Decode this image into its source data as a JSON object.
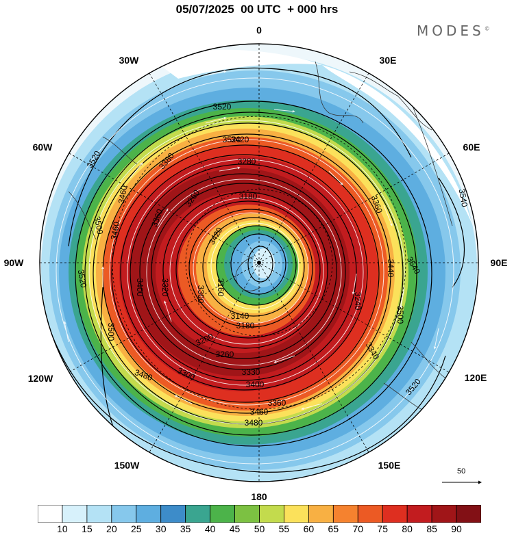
{
  "title": "05/07/2025  00 UTC  + 000 hrs",
  "brand": "MODES",
  "brand_mark": "©",
  "longitudes": [
    {
      "label": "0",
      "name": "lon-label-0"
    },
    {
      "label": "30E",
      "name": "lon-label-30e"
    },
    {
      "label": "60E",
      "name": "lon-label-60e"
    },
    {
      "label": "90E",
      "name": "lon-label-90e"
    },
    {
      "label": "120E",
      "name": "lon-label-120e"
    },
    {
      "label": "150E",
      "name": "lon-label-150e"
    },
    {
      "label": "180",
      "name": "lon-label-180"
    },
    {
      "label": "150W",
      "name": "lon-label-150w"
    },
    {
      "label": "120W",
      "name": "lon-label-120w"
    },
    {
      "label": "90W",
      "name": "lon-label-90w"
    },
    {
      "label": "60W",
      "name": "lon-label-60w"
    },
    {
      "label": "30W",
      "name": "lon-label-30w"
    }
  ],
  "contour_labels": [
    "3520",
    "3520",
    "3540",
    "3540",
    "3520",
    "3500",
    "3520",
    "3500",
    "3480",
    "3500",
    "3460",
    "3460",
    "3520",
    "3420",
    "3380",
    "3360",
    "3280",
    "3260",
    "3180",
    "3420",
    "3400",
    "3360",
    "3320",
    "3300",
    "3240",
    "3140",
    "3180",
    "3200",
    "3260",
    "3340",
    "3330",
    "3400",
    "3300",
    "3160",
    "3360",
    "3440",
    "3460",
    "3480"
  ],
  "reference_vector": {
    "value": "50"
  },
  "colorbar": {
    "ticks": [
      "10",
      "15",
      "20",
      "25",
      "30",
      "35",
      "40",
      "45",
      "50",
      "55",
      "60",
      "65",
      "70",
      "75",
      "80",
      "85",
      "90"
    ],
    "colors": [
      "#ffffff",
      "#d7f1fb",
      "#b4e2f5",
      "#86c8ec",
      "#5eaee0",
      "#3d8cc9",
      "#3aa590",
      "#4cb34a",
      "#7cc142",
      "#c3db4d",
      "#fbe15b",
      "#f8b043",
      "#f5822f",
      "#ec5a24",
      "#de2f20",
      "#c21c1f",
      "#a01518",
      "#821015"
    ]
  }
}
